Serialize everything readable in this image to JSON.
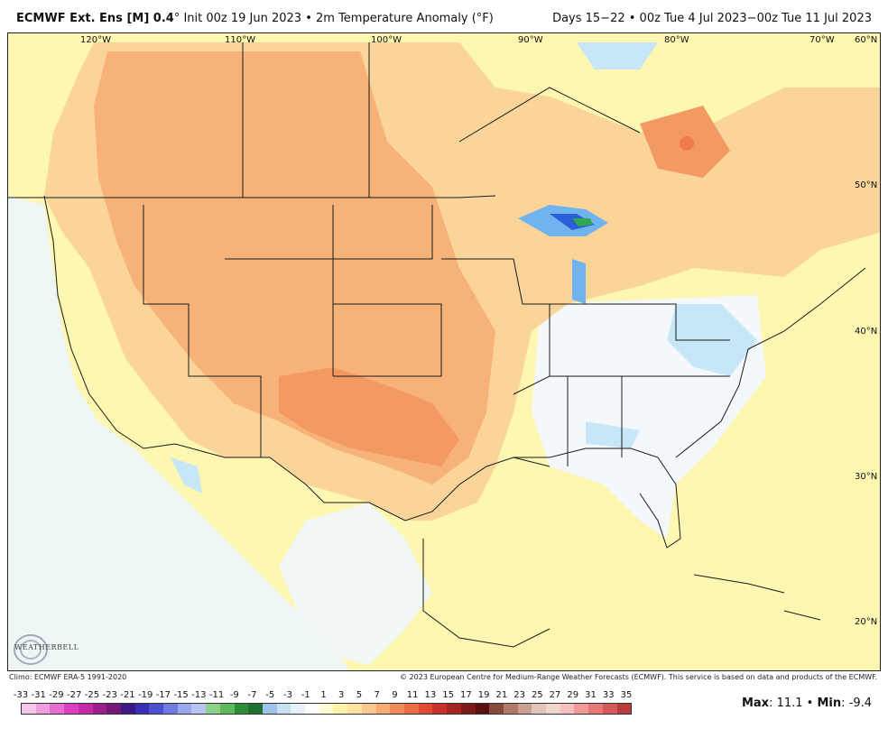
{
  "header": {
    "model_bold": "ECMWF Ext.  Ens [M] 0.4",
    "degree": "°",
    "init_text": " Init 00z 19 Jun 2023 • 2m Temperature Anomaly (°F)",
    "valid_text": "Days 15−22 • 00z Tue 4 Jul 2023−00z Tue 11 Jul 2023"
  },
  "map": {
    "lon_labels": [
      "120°W",
      "110°W",
      "100°W",
      "90°W",
      "80°W",
      "70°W"
    ],
    "lat_labels": [
      "60°N",
      "50°N",
      "40°N",
      "30°N",
      "20°N"
    ],
    "colors": {
      "ocean_white": "#ffffff",
      "light_yellow": "#fdf7b2",
      "yellow": "#fde6a0",
      "light_orange": "#fbd49a",
      "orange": "#f7b27a",
      "deep_orange": "#f39a62",
      "red_orange": "#ef7a4c",
      "light_blue": "#c7e6f7",
      "blue": "#6fb4ee",
      "dark_blue": "#2a5fd6",
      "green": "#2fa84f",
      "border": "#1a1a1a"
    }
  },
  "footer": {
    "climo": "Climo: ECMWF ERA-5 1991-2020",
    "copyright": "© 2023 European Centre for Medium-Range Weather Forecasts (ECMWF). This service is based on data and products of the ECMWF."
  },
  "logo": {
    "text": "WEATHERBELL"
  },
  "scale": {
    "labels": [
      "-33",
      "-31",
      "-29",
      "-27",
      "-25",
      "-23",
      "-21",
      "-19",
      "-17",
      "-15",
      "-13",
      "-11",
      "-9",
      "-7",
      "-5",
      "-3",
      "-1",
      "1",
      "3",
      "5",
      "7",
      "9",
      "11",
      "13",
      "15",
      "17",
      "19",
      "21",
      "23",
      "25",
      "27",
      "29",
      "31",
      "33",
      "35"
    ],
    "colors": [
      "#f7c6ec",
      "#ef9fdf",
      "#e46fd0",
      "#d93fc0",
      "#c42aa8",
      "#9a1f8a",
      "#741a74",
      "#3b1a86",
      "#3a2fb0",
      "#4b4fd0",
      "#6f7be0",
      "#9aa6ee",
      "#b9c4f3",
      "#8fd08a",
      "#5cb85c",
      "#2e8b3a",
      "#1f6f2e",
      "#9ec3e6",
      "#c7e0f2",
      "#e6f1f8",
      "#ffffff",
      "#fffbd6",
      "#fdf2a8",
      "#fde2a0",
      "#fbc98f",
      "#f7ab74",
      "#f38a5b",
      "#ec6a45",
      "#e04a35",
      "#c8322a",
      "#a52522",
      "#7f1a1a",
      "#5a1212",
      "#8a4a3a",
      "#b07a66",
      "#caa090",
      "#e2c4b8",
      "#f0d6cc",
      "#f7c0c0",
      "#f09a9a",
      "#e77878",
      "#d45a5a",
      "#b83c3c"
    ]
  },
  "stats": {
    "max_label": "Max",
    "max_value": ": 11.1 • ",
    "min_label": "Min",
    "min_value": ": -9.4"
  }
}
